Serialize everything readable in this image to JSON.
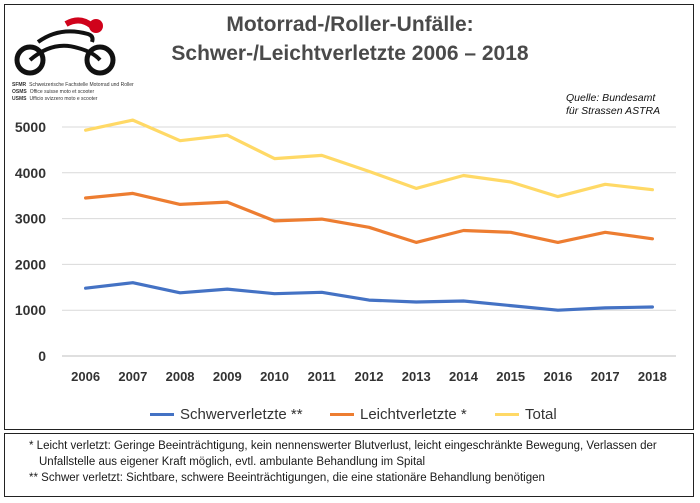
{
  "title_line1": "Motorrad-/Roller-Unfälle:",
  "title_line2": "Schwer-/Leichtverletzte 2006 – 2018",
  "source_line1": "Quelle: Bundesamt",
  "source_line2": "für Strassen ASTRA",
  "logo": {
    "lines": [
      {
        "abbr": "SFMR",
        "text": "Schweizerische Fachstelle Motorrad und Roller"
      },
      {
        "abbr": "OSMS",
        "text": "Office suisse moto et scooter"
      },
      {
        "abbr": "USMS",
        "text": "Ufficio svizzero moto e scooter"
      }
    ]
  },
  "colors": {
    "schwer": "#4472c4",
    "leicht": "#ed7d31",
    "total": "#ffd966",
    "grid": "#d9d9d9"
  },
  "chart_data": {
    "type": "line",
    "categories": [
      "2006",
      "2007",
      "2008",
      "2009",
      "2010",
      "2011",
      "2012",
      "2013",
      "2014",
      "2015",
      "2016",
      "2017",
      "2018"
    ],
    "series": [
      {
        "name": "Schwerverletzte **",
        "color": "#4472c4",
        "values": [
          1480,
          1600,
          1380,
          1460,
          1360,
          1390,
          1220,
          1180,
          1200,
          1100,
          1000,
          1050,
          1070
        ]
      },
      {
        "name": "Leichtverletzte *",
        "color": "#ed7d31",
        "values": [
          3450,
          3550,
          3310,
          3360,
          2950,
          2990,
          2810,
          2480,
          2740,
          2700,
          2480,
          2700,
          2560
        ]
      },
      {
        "name": "Total",
        "color": "#ffd966",
        "values": [
          4930,
          5150,
          4700,
          4820,
          4310,
          4380,
          4030,
          3660,
          3940,
          3800,
          3480,
          3750,
          3630
        ]
      }
    ],
    "yticks": [
      "0",
      "1000",
      "2000",
      "3000",
      "4000",
      "5000"
    ],
    "ylim": [
      0,
      5000
    ],
    "grid": true,
    "legend": "bottom"
  },
  "footnotes": {
    "line1": "* Leicht verletzt: Geringe Beeinträchtigung, kein nennenswerter Blutverlust, leicht eingeschränkte Bewegung, Verlassen der",
    "line2": "Unfallstelle aus eigener Kraft möglich, evtl. ambulante Behandlung im Spital",
    "line3": "** Schwer verletzt: Sichtbare, schwere Beeinträchtigungen, die eine stationäre Behandlung benötigen"
  }
}
